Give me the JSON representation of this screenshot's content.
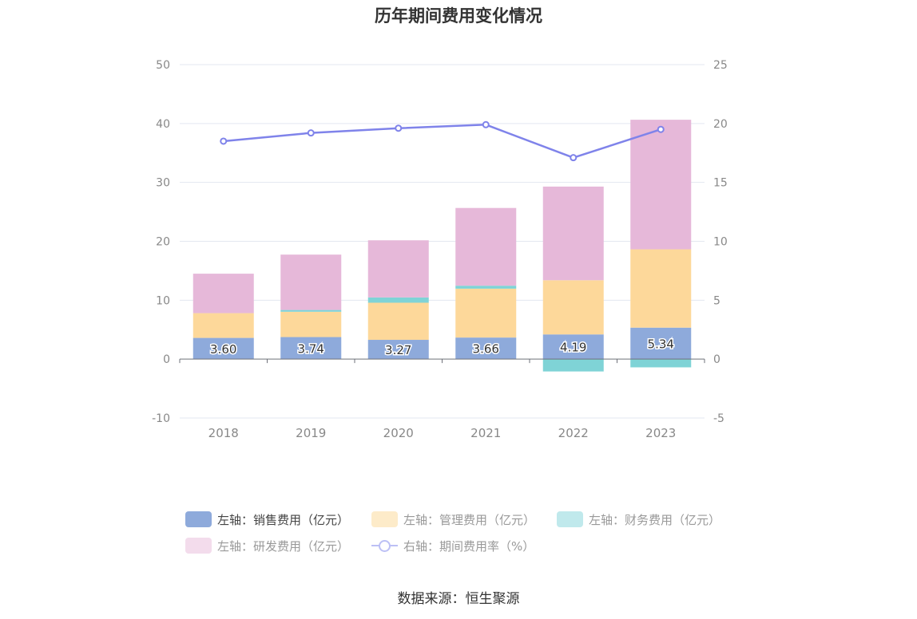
{
  "chart_data": {
    "type": "bar",
    "title": "历年期间费用变化情况",
    "categories": [
      "2018",
      "2019",
      "2020",
      "2021",
      "2022",
      "2023"
    ],
    "stacked": true,
    "series": [
      {
        "name": "左轴：销售费用（亿元）",
        "axis": "left",
        "color": "#8eaadb",
        "values": [
          3.6,
          3.74,
          3.27,
          3.66,
          4.19,
          5.34
        ],
        "show_labels": true
      },
      {
        "name": "左轴：管理费用（亿元）",
        "axis": "left",
        "color": "#fdd89a",
        "values": [
          4.2,
          4.3,
          6.3,
          8.3,
          9.2,
          13.3
        ]
      },
      {
        "name": "左轴：财务费用（亿元）",
        "axis": "left",
        "color": "#7fd3d6",
        "values": [
          0.0,
          0.3,
          0.9,
          0.5,
          -2.1,
          -1.4
        ]
      },
      {
        "name": "左轴：研发费用（亿元）",
        "axis": "left",
        "color": "#e6b8d9",
        "values": [
          6.7,
          9.4,
          9.7,
          13.2,
          15.9,
          22.0
        ]
      },
      {
        "name": "右轴：期间费用率（%）",
        "axis": "right",
        "type": "line",
        "color": "#7f83ea",
        "values": [
          18.5,
          19.2,
          19.6,
          19.9,
          17.1,
          19.5
        ]
      }
    ],
    "y_left": {
      "min": -10,
      "max": 50,
      "ticks": [
        "-10",
        "0",
        "10",
        "20",
        "30",
        "40",
        "50"
      ]
    },
    "y_right": {
      "min": -5,
      "max": 25,
      "ticks": [
        "-5",
        "0",
        "5",
        "10",
        "15",
        "20",
        "25"
      ]
    },
    "grid": true,
    "legend_position": "bottom"
  },
  "legend": {
    "items": [
      {
        "label": "左轴：销售费用（亿元）",
        "color": "#8eaadb",
        "kind": "box"
      },
      {
        "label": "左轴：管理费用（亿元）",
        "color": "#fdebc9",
        "kind": "box"
      },
      {
        "label": "左轴：财务费用（亿元）",
        "color": "#c0e9ec",
        "kind": "box"
      },
      {
        "label": "左轴：研发费用（亿元）",
        "color": "#f3dcec",
        "kind": "box"
      },
      {
        "label": "右轴：期间费用率（%）",
        "color": "#bcc0f5",
        "kind": "line"
      }
    ]
  },
  "source": "数据来源：恒生聚源"
}
